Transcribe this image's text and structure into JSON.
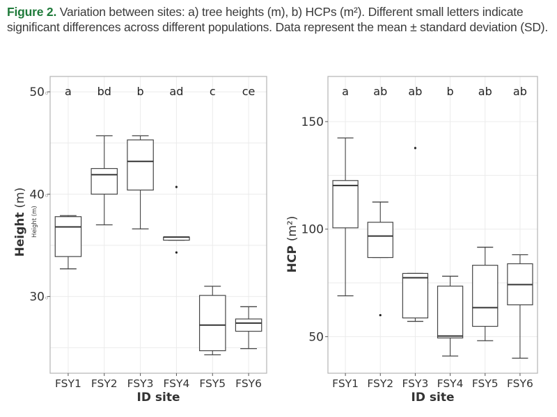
{
  "caption": {
    "lead": "Figure 2.",
    "text": " Variation between sites: a) tree heights (m), b) HCPs (m²). Different small letters indicate significant differences across different populations. Data represent the mean ± standard deviation (SD)."
  },
  "colors": {
    "caption_lead": "#1f7a3a",
    "box_stroke": "#444444",
    "grid": "#ebebeb",
    "panel_border": "#b3b3b3"
  },
  "chart_data": [
    {
      "type": "box",
      "panel": "a",
      "xlabel": "ID site",
      "ylabel": "Height",
      "ylabel_unit": "(m)",
      "ylabel_small": "Height (m)",
      "ylim": [
        22.5,
        51.5
      ],
      "yticks": [
        30,
        40,
        50
      ],
      "ytick_labels": [
        "30",
        "40",
        "50"
      ],
      "grid": true,
      "categories": [
        "FSY1",
        "FSY2",
        "FSY3",
        "FSY4",
        "FSY5",
        "FSY6"
      ],
      "significance_letters": [
        "a",
        "bd",
        "b",
        "ad",
        "c",
        "ce"
      ],
      "boxes": [
        {
          "min": 32.7,
          "q1": 33.9,
          "median": 36.8,
          "q3": 37.8,
          "max": 37.9,
          "outliers": []
        },
        {
          "min": 37.0,
          "q1": 40.0,
          "median": 41.9,
          "q3": 42.5,
          "max": 45.7,
          "outliers": []
        },
        {
          "min": 36.6,
          "q1": 40.4,
          "median": 43.2,
          "q3": 45.3,
          "max": 45.7,
          "outliers": []
        },
        {
          "min": 35.5,
          "q1": 35.5,
          "median": 35.8,
          "q3": 35.8,
          "max": 35.8,
          "outliers": [
            40.7,
            34.3
          ]
        },
        {
          "min": 24.3,
          "q1": 24.7,
          "median": 27.2,
          "q3": 30.1,
          "max": 31.0,
          "outliers": []
        },
        {
          "min": 24.9,
          "q1": 26.6,
          "median": 27.4,
          "q3": 27.8,
          "max": 29.0,
          "outliers": []
        }
      ]
    },
    {
      "type": "box",
      "panel": "b",
      "xlabel": "ID site",
      "ylabel": "HCP",
      "ylabel_unit": "(m²)",
      "ylim": [
        33,
        171
      ],
      "yticks": [
        50,
        100,
        150
      ],
      "ytick_labels": [
        "50",
        "100",
        "150"
      ],
      "grid": true,
      "categories": [
        "FSY1",
        "FSY2",
        "FSY3",
        "FSY4",
        "FSY5",
        "FSY6"
      ],
      "significance_letters": [
        "a",
        "ab",
        "ab",
        "b",
        "ab",
        "ab"
      ],
      "boxes": [
        {
          "min": 69.0,
          "q1": 100.6,
          "median": 120.3,
          "q3": 122.6,
          "max": 142.4,
          "outliers": []
        },
        {
          "min": 86.8,
          "q1": 86.8,
          "median": 96.8,
          "q3": 103.2,
          "max": 112.6,
          "outliers": [
            60.0
          ]
        },
        {
          "min": 57.1,
          "q1": 58.7,
          "median": 77.4,
          "q3": 79.4,
          "max": 79.4,
          "outliers": [
            137.7
          ]
        },
        {
          "min": 41.0,
          "q1": 49.4,
          "median": 50.3,
          "q3": 73.5,
          "max": 78.1,
          "outliers": []
        },
        {
          "min": 48.1,
          "q1": 54.8,
          "median": 63.5,
          "q3": 83.2,
          "max": 91.6,
          "outliers": []
        },
        {
          "min": 40.0,
          "q1": 64.8,
          "median": 74.2,
          "q3": 83.9,
          "max": 88.1,
          "outliers": []
        }
      ]
    }
  ]
}
